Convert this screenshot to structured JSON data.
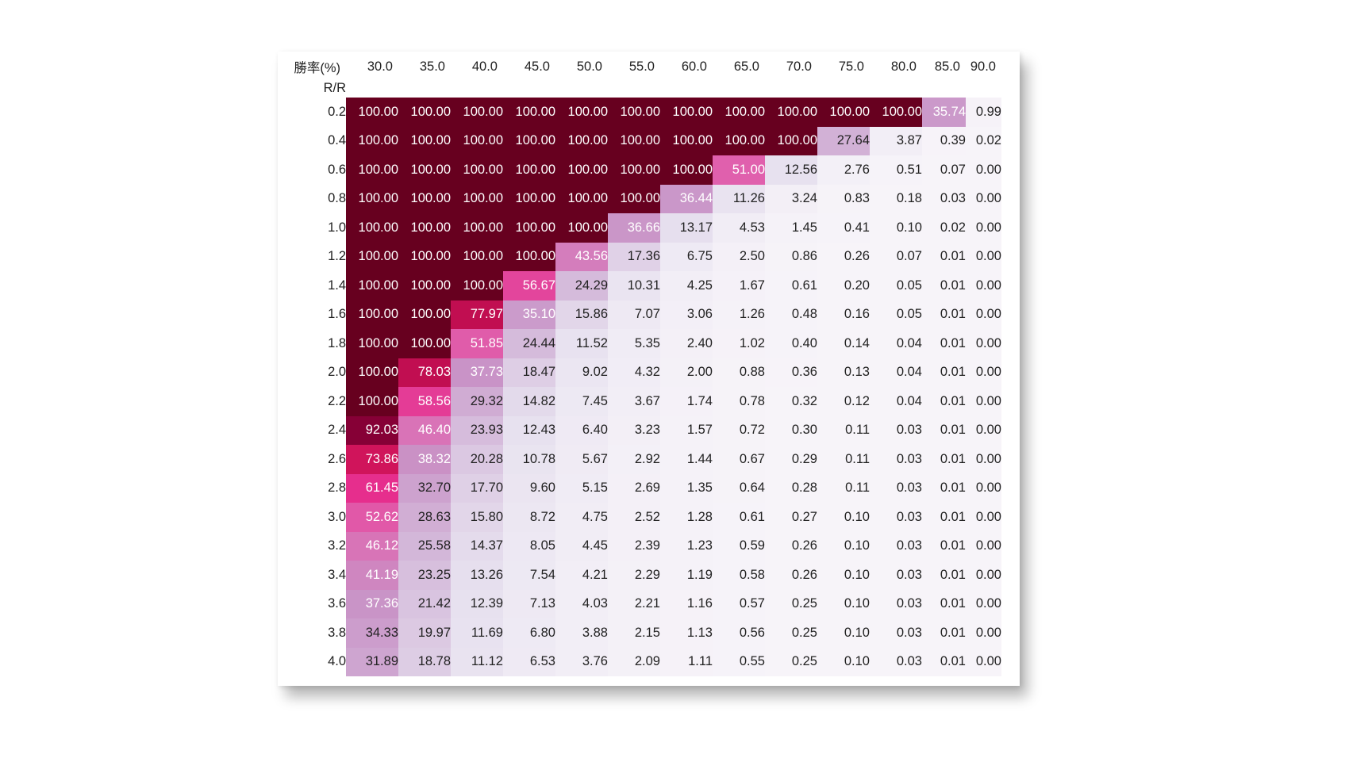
{
  "corner_top": "勝率(%)",
  "corner_bottom": "R/R",
  "chart_data": {
    "type": "heatmap",
    "xlabel": "勝率(%)",
    "ylabel": "R/R",
    "x": [
      "30.0",
      "35.0",
      "40.0",
      "45.0",
      "50.0",
      "55.0",
      "60.0",
      "65.0",
      "70.0",
      "75.0",
      "80.0",
      "85.0",
      "90.0"
    ],
    "y": [
      "0.2",
      "0.4",
      "0.6",
      "0.8",
      "1.0",
      "1.2",
      "1.4",
      "1.6",
      "1.8",
      "2.0",
      "2.2",
      "2.4",
      "2.6",
      "2.8",
      "3.0",
      "3.2",
      "3.4",
      "3.6",
      "3.8",
      "4.0"
    ],
    "values": [
      [
        "100.00",
        "100.00",
        "100.00",
        "100.00",
        "100.00",
        "100.00",
        "100.00",
        "100.00",
        "100.00",
        "100.00",
        "100.00",
        "35.74",
        "0.99"
      ],
      [
        "100.00",
        "100.00",
        "100.00",
        "100.00",
        "100.00",
        "100.00",
        "100.00",
        "100.00",
        "100.00",
        "27.64",
        "3.87",
        "0.39",
        "0.02"
      ],
      [
        "100.00",
        "100.00",
        "100.00",
        "100.00",
        "100.00",
        "100.00",
        "100.00",
        "51.00",
        "12.56",
        "2.76",
        "0.51",
        "0.07",
        "0.00"
      ],
      [
        "100.00",
        "100.00",
        "100.00",
        "100.00",
        "100.00",
        "100.00",
        "36.44",
        "11.26",
        "3.24",
        "0.83",
        "0.18",
        "0.03",
        "0.00"
      ],
      [
        "100.00",
        "100.00",
        "100.00",
        "100.00",
        "100.00",
        "36.66",
        "13.17",
        "4.53",
        "1.45",
        "0.41",
        "0.10",
        "0.02",
        "0.00"
      ],
      [
        "100.00",
        "100.00",
        "100.00",
        "100.00",
        "43.56",
        "17.36",
        "6.75",
        "2.50",
        "0.86",
        "0.26",
        "0.07",
        "0.01",
        "0.00"
      ],
      [
        "100.00",
        "100.00",
        "100.00",
        "56.67",
        "24.29",
        "10.31",
        "4.25",
        "1.67",
        "0.61",
        "0.20",
        "0.05",
        "0.01",
        "0.00"
      ],
      [
        "100.00",
        "100.00",
        "77.97",
        "35.10",
        "15.86",
        "7.07",
        "3.06",
        "1.26",
        "0.48",
        "0.16",
        "0.05",
        "0.01",
        "0.00"
      ],
      [
        "100.00",
        "100.00",
        "51.85",
        "24.44",
        "11.52",
        "5.35",
        "2.40",
        "1.02",
        "0.40",
        "0.14",
        "0.04",
        "0.01",
        "0.00"
      ],
      [
        "100.00",
        "78.03",
        "37.73",
        "18.47",
        "9.02",
        "4.32",
        "2.00",
        "0.88",
        "0.36",
        "0.13",
        "0.04",
        "0.01",
        "0.00"
      ],
      [
        "100.00",
        "58.56",
        "29.32",
        "14.82",
        "7.45",
        "3.67",
        "1.74",
        "0.78",
        "0.32",
        "0.12",
        "0.04",
        "0.01",
        "0.00"
      ],
      [
        "92.03",
        "46.40",
        "23.93",
        "12.43",
        "6.40",
        "3.23",
        "1.57",
        "0.72",
        "0.30",
        "0.11",
        "0.03",
        "0.01",
        "0.00"
      ],
      [
        "73.86",
        "38.32",
        "20.28",
        "10.78",
        "5.67",
        "2.92",
        "1.44",
        "0.67",
        "0.29",
        "0.11",
        "0.03",
        "0.01",
        "0.00"
      ],
      [
        "61.45",
        "32.70",
        "17.70",
        "9.60",
        "5.15",
        "2.69",
        "1.35",
        "0.64",
        "0.28",
        "0.11",
        "0.03",
        "0.01",
        "0.00"
      ],
      [
        "52.62",
        "28.63",
        "15.80",
        "8.72",
        "4.75",
        "2.52",
        "1.28",
        "0.61",
        "0.27",
        "0.10",
        "0.03",
        "0.01",
        "0.00"
      ],
      [
        "46.12",
        "25.58",
        "14.37",
        "8.05",
        "4.45",
        "2.39",
        "1.23",
        "0.59",
        "0.26",
        "0.10",
        "0.03",
        "0.01",
        "0.00"
      ],
      [
        "41.19",
        "23.25",
        "13.26",
        "7.54",
        "4.21",
        "2.29",
        "1.19",
        "0.58",
        "0.26",
        "0.10",
        "0.03",
        "0.01",
        "0.00"
      ],
      [
        "37.36",
        "21.42",
        "12.39",
        "7.13",
        "4.03",
        "2.21",
        "1.16",
        "0.57",
        "0.25",
        "0.10",
        "0.03",
        "0.01",
        "0.00"
      ],
      [
        "34.33",
        "19.97",
        "11.69",
        "6.80",
        "3.88",
        "2.15",
        "1.13",
        "0.56",
        "0.25",
        "0.10",
        "0.03",
        "0.01",
        "0.00"
      ],
      [
        "31.89",
        "18.78",
        "11.12",
        "6.53",
        "3.76",
        "2.09",
        "1.11",
        "0.55",
        "0.25",
        "0.10",
        "0.03",
        "0.01",
        "0.00"
      ]
    ],
    "vmin": 0,
    "vmax": 100,
    "colormap": [
      "#f7f4f9",
      "#e7e1ef",
      "#d4b9da",
      "#c994c7",
      "#df65b0",
      "#e7298a",
      "#ce1256",
      "#980043",
      "#67001f"
    ]
  }
}
